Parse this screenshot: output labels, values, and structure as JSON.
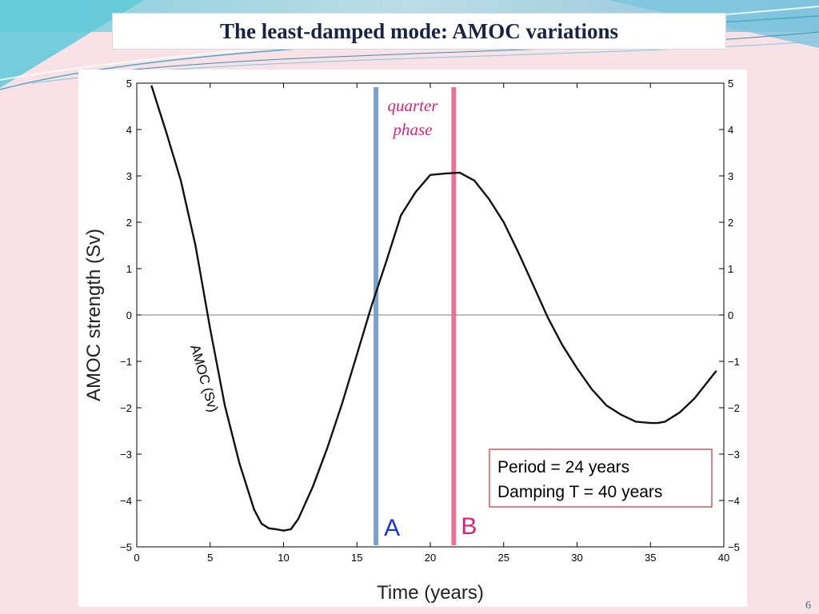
{
  "slide": {
    "title": "The least-damped mode: AMOC variations",
    "number": "6"
  },
  "colors": {
    "background": "#f9e1e6",
    "accent_blue": "#6a97c8",
    "accent_pink": "#e5668c",
    "label_magenta": "#d4257a",
    "marker_a": "#1a35d6",
    "info_border": "#d93030"
  },
  "chart_data": {
    "type": "line",
    "xlabel": "Time (years)",
    "ylabel": "AMOC  strength (Sv)",
    "xlim": [
      0,
      40
    ],
    "ylim": [
      -5,
      5
    ],
    "xticks": [
      "0",
      "5",
      "10",
      "15",
      "20",
      "25",
      "30",
      "35",
      "40"
    ],
    "yticks": [
      "5",
      "4",
      "3",
      "2",
      "1",
      "0",
      "−1",
      "−2",
      "−3",
      "−4",
      "−5"
    ],
    "grid": false,
    "zero_line": true,
    "series": [
      {
        "name": "AMOC (Sv)",
        "x": [
          1,
          2,
          3,
          4,
          5,
          6,
          7,
          8,
          8.5,
          9,
          9.5,
          10,
          10.5,
          11,
          12,
          13,
          14,
          15,
          16,
          17,
          18,
          19,
          20,
          21,
          22,
          23,
          24,
          25,
          26,
          27,
          28,
          29,
          30,
          31,
          32,
          33,
          34,
          35,
          35.5,
          36,
          37,
          38,
          39,
          39.5
        ],
        "y": [
          4.95,
          3.95,
          2.9,
          1.5,
          -0.3,
          -1.95,
          -3.2,
          -4.2,
          -4.5,
          -4.6,
          -4.62,
          -4.65,
          -4.62,
          -4.4,
          -3.7,
          -2.85,
          -1.9,
          -0.85,
          0.2,
          1.15,
          2.15,
          2.65,
          3.02,
          3.05,
          3.07,
          2.9,
          2.5,
          2.0,
          1.35,
          0.65,
          -0.05,
          -0.65,
          -1.15,
          -1.6,
          -1.95,
          -2.15,
          -2.3,
          -2.33,
          -2.33,
          -2.3,
          -2.1,
          -1.8,
          -1.4,
          -1.2
        ]
      }
    ],
    "vertical_markers": [
      {
        "x": 16.3,
        "label": "A",
        "color": "#6a97c8"
      },
      {
        "x": 21.6,
        "label": "B",
        "color": "#e5668c"
      }
    ],
    "annotations": {
      "phase_line1": "quarter",
      "phase_line2": "phase",
      "curve_label": "AMOC (Sv)",
      "info_line1": "Period = 24 years",
      "info_line2": "Damping T = 40 years"
    }
  }
}
